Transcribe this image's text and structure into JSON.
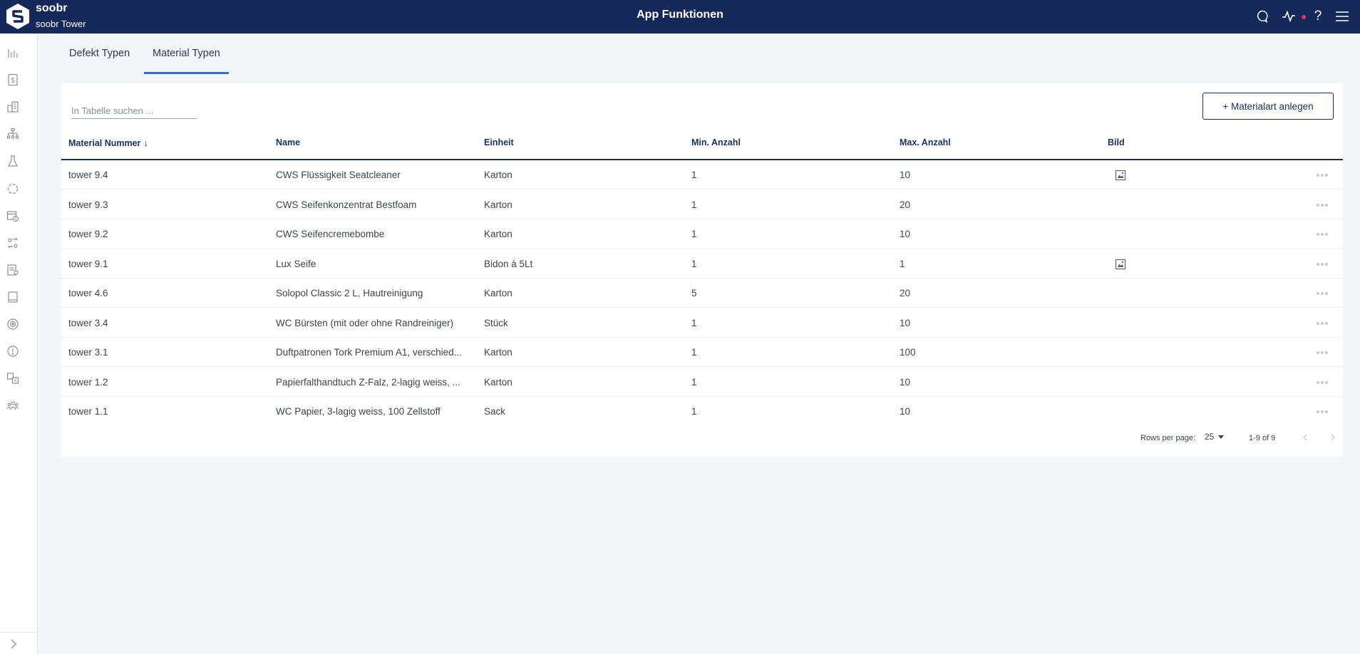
{
  "header": {
    "brand": "soobr",
    "org": "soobr Tower",
    "title": "App Funktionen"
  },
  "tabs": [
    {
      "label": "Defekt Typen",
      "active": false
    },
    {
      "label": "Material Typen",
      "active": true
    }
  ],
  "toolbar": {
    "search_placeholder": "In Tabelle suchen ...",
    "add_label": "+ Materialart anlegen"
  },
  "table": {
    "columns": [
      "Material Nummer",
      "Name",
      "Einheit",
      "Min. Anzahl",
      "Max. Anzahl",
      "Bild"
    ],
    "sorted_column": "Material Nummer",
    "sort_direction": "descending",
    "rows": [
      {
        "nummer": "tower 9.4",
        "name": "CWS Flüssigkeit Seatcleaner",
        "einheit": "Karton",
        "min": "1",
        "max": "10",
        "bild": true
      },
      {
        "nummer": "tower 9.3",
        "name": "CWS Seifenkonzentrat Bestfoam",
        "einheit": "Karton",
        "min": "1",
        "max": "20",
        "bild": false
      },
      {
        "nummer": "tower 9.2",
        "name": "CWS Seifencremebombe",
        "einheit": "Karton",
        "min": "1",
        "max": "10",
        "bild": false
      },
      {
        "nummer": "tower 9.1",
        "name": "Lux Seife",
        "einheit": "Bidon à 5Lt",
        "min": "1",
        "max": "1",
        "bild": true
      },
      {
        "nummer": "tower 4.6",
        "name": "Solopol Classic 2 L, Hautreinigung",
        "einheit": "Karton",
        "min": "5",
        "max": "20",
        "bild": false
      },
      {
        "nummer": "tower 3.4",
        "name": "WC Bürsten (mit oder ohne Randreiniger)",
        "einheit": "Stück",
        "min": "1",
        "max": "10",
        "bild": false
      },
      {
        "nummer": "tower 3.1",
        "name": "Duftpatronen Tork Premium A1, verschied...",
        "einheit": "Karton",
        "min": "1",
        "max": "100",
        "bild": false
      },
      {
        "nummer": "tower 1.2",
        "name": "Papierfalthandtuch Z-Falz, 2-lagig weiss, ...",
        "einheit": "Karton",
        "min": "1",
        "max": "10",
        "bild": false
      },
      {
        "nummer": "tower 1.1",
        "name": "WC Papier, 3-lagig weiss, 100 Zellstoff",
        "einheit": "Sack",
        "min": "1",
        "max": "10",
        "bild": false
      }
    ]
  },
  "pagination": {
    "rows_per_page_label": "Rows per page:",
    "rows_per_page": "25",
    "range": "1-9 of 9"
  },
  "sidebar": {
    "icons": [
      "dashboard-icon",
      "billing-icon",
      "buildings-icon",
      "hierarchy-icon",
      "lab-icon",
      "cycle-icon",
      "calendar-clock-icon",
      "assignment-icon",
      "report-icon",
      "tablet-icon",
      "target-icon",
      "alert-icon",
      "translate-icon",
      "team-icon"
    ]
  },
  "colors": {
    "header_bg": "#14295a",
    "accent": "#2f6fdd",
    "notification": "#f0315a"
  }
}
